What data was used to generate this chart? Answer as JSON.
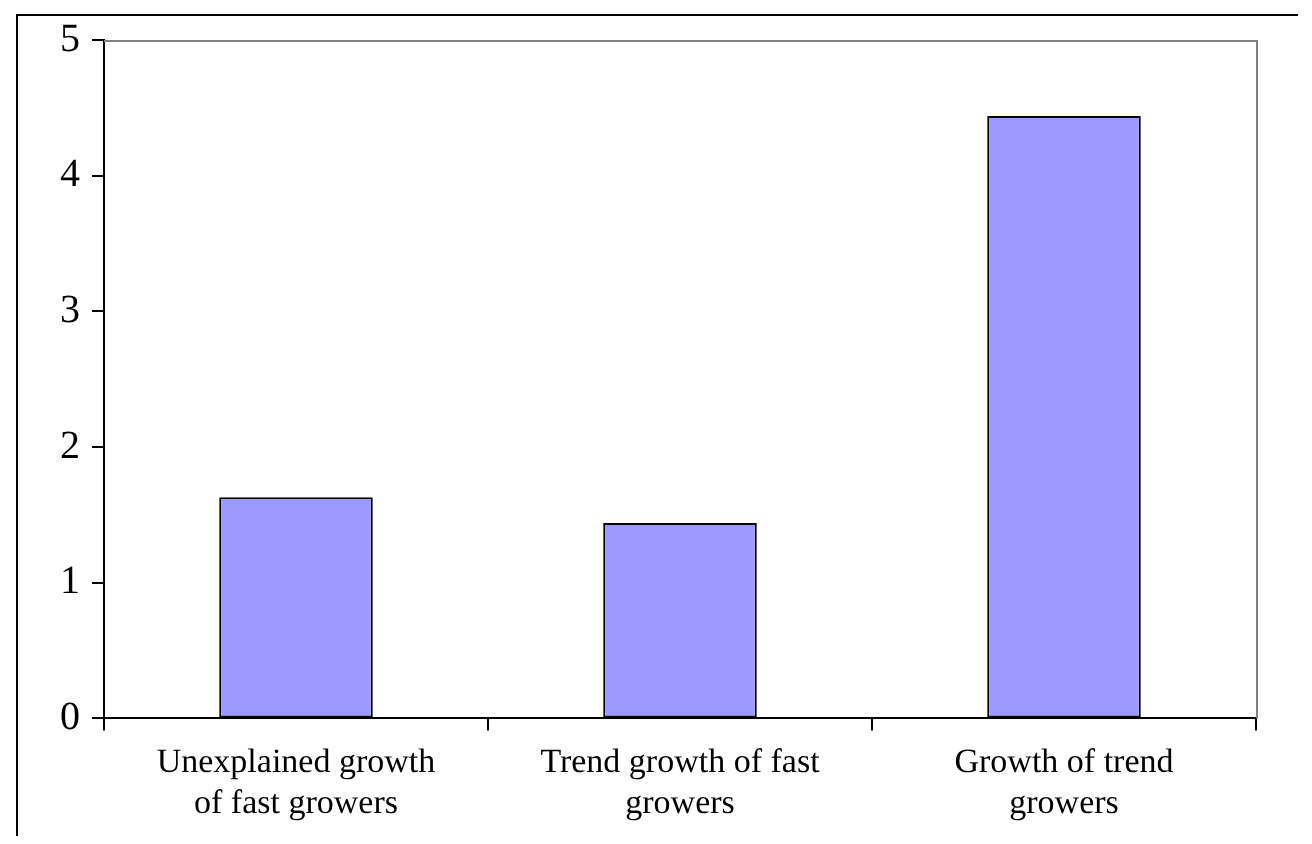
{
  "chart_data": {
    "type": "bar",
    "categories": [
      "Unexplained growth of fast growers",
      "Trend growth of fast growers",
      "Growth of trend growers"
    ],
    "values": [
      1.63,
      1.44,
      4.44
    ],
    "color": "#9999ff",
    "ylim": [
      0,
      5
    ],
    "yticks": [
      0,
      1,
      2,
      3,
      4,
      5
    ],
    "grid": false,
    "legend": false
  }
}
